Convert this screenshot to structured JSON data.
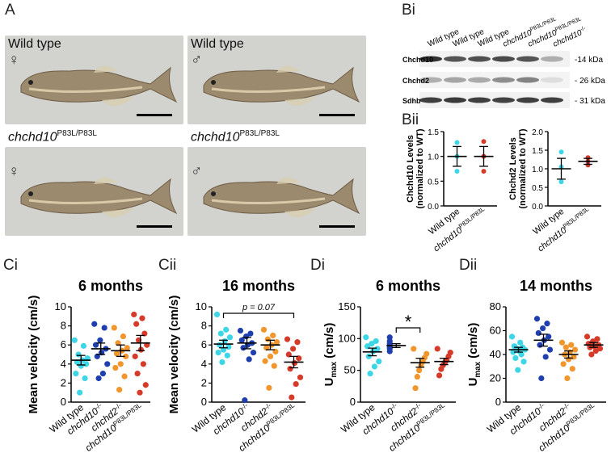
{
  "panel_labels": {
    "A": "A",
    "Bi": "Bi",
    "Bii": "Bii",
    "Ci": "Ci",
    "Cii": "Cii",
    "Di": "Di",
    "Dii": "Dii"
  },
  "panel_a": {
    "photos": [
      {
        "genotype": "Wild type",
        "sup": "",
        "sex": "♀"
      },
      {
        "genotype": "Wild type",
        "sup": "",
        "sex": "♂"
      },
      {
        "genotype": "chchd10",
        "sup": "P83L/P83L",
        "sex": "♀"
      },
      {
        "genotype": "chchd10",
        "sup": "P83L/P83L",
        "sex": "♂"
      }
    ]
  },
  "panel_bi": {
    "lanes": [
      {
        "label": "Wild type",
        "sup": ""
      },
      {
        "label": "Wild type",
        "sup": ""
      },
      {
        "label": "Wild type",
        "sup": ""
      },
      {
        "label": "chchd10",
        "sup": "P83L/P83L"
      },
      {
        "label": "chchd10",
        "sup": "P83L/P83L"
      },
      {
        "label": "chchd10",
        "sup": "-/-"
      }
    ],
    "bands": [
      {
        "protein": "Chchd10",
        "mw": "-14 kDa"
      },
      {
        "protein": "Chchd2",
        "mw": "- 26 kDa"
      },
      {
        "protein": "Sdhb",
        "mw": "- 31 kDa"
      }
    ]
  },
  "xlabels": {
    "wt": "Wild type",
    "chchd10_ko": "chchd10",
    "chchd10_ko_sup": "-/-",
    "chchd2_ko": "chchd2",
    "chchd2_ko_sup": "-/-",
    "p83l": "chchd10",
    "p83l_sup": "P83L/P83L"
  },
  "colors": {
    "wt": "#3dd6e6",
    "chchd10_ko": "#1f3fae",
    "chchd2_ko": "#f0962c",
    "p83l": "#d63b2a"
  },
  "chart_data": [
    {
      "id": "Bii-left",
      "type": "scatter",
      "ylabel": "Chchd10 Levels\n(normalized to WT)",
      "ylim": [
        0,
        1.5
      ],
      "yticks": [
        "0.0",
        "0.5",
        "1.0",
        "1.5"
      ],
      "categories": [
        "Wild type",
        "chchd10 P83L/P83L"
      ],
      "series": [
        {
          "group": "wt",
          "points": [
            1.28,
            1.0,
            0.7
          ],
          "mean": 1.0,
          "sem": 0.2
        },
        {
          "group": "p83l",
          "points": [
            1.3,
            1.0,
            0.7
          ],
          "mean": 1.0,
          "sem": 0.2
        }
      ]
    },
    {
      "id": "Bii-right",
      "type": "scatter",
      "ylabel": "Chchd2 Levels\n(normalized to WT)",
      "ylim": [
        0,
        2.0
      ],
      "yticks": [
        "0.0",
        "0.5",
        "1.0",
        "1.5",
        "2.0"
      ],
      "categories": [
        "Wild type",
        "chchd10 P83L/P83L"
      ],
      "series": [
        {
          "group": "wt",
          "points": [
            1.45,
            1.05,
            0.65
          ],
          "mean": 1.0,
          "sem": 0.28
        },
        {
          "group": "p83l",
          "points": [
            1.3,
            1.2,
            1.1
          ],
          "mean": 1.2,
          "sem": 0.08
        }
      ]
    },
    {
      "id": "Ci",
      "type": "scatter",
      "title": "6 months",
      "ylabel": "Mean velocity (cm/s)",
      "ylim": [
        0,
        10
      ],
      "yticks": [
        "0",
        "2",
        "4",
        "6",
        "8",
        "10"
      ],
      "categories": [
        "Wild type",
        "chchd10 -/-",
        "chchd2 -/-",
        "chchd10 P83L/P83L"
      ],
      "series": [
        {
          "group": "wt",
          "points": [
            6.5,
            5.9,
            5.0,
            4.6,
            4.4,
            4.2,
            4.0,
            3.8,
            3.0,
            2.5,
            1.0
          ],
          "mean": 4.4,
          "sem": 0.5
        },
        {
          "group": "chchd10_ko",
          "points": [
            8.2,
            7.8,
            6.5,
            6.0,
            5.6,
            5.2,
            4.8,
            4.0,
            3.0,
            2.5
          ],
          "mean": 5.6,
          "sem": 0.6
        },
        {
          "group": "chchd2_ko",
          "points": [
            7.8,
            6.9,
            6.2,
            5.7,
            5.4,
            5.1,
            4.8,
            4.0,
            3.6,
            2.7,
            1.3
          ],
          "mean": 5.4,
          "sem": 0.6
        },
        {
          "group": "p83l",
          "points": [
            9.2,
            8.8,
            8.2,
            7.2,
            6.5,
            6.0,
            5.5,
            4.8,
            4.0,
            3.0,
            1.8,
            1.0
          ],
          "mean": 6.2,
          "sem": 0.8
        }
      ]
    },
    {
      "id": "Cii",
      "type": "scatter",
      "title": "16 months",
      "ylabel": "Mean velocity (cm/s)",
      "ylim": [
        0,
        10
      ],
      "yticks": [
        "0",
        "2",
        "4",
        "6",
        "8",
        "10"
      ],
      "categories": [
        "Wild type",
        "chchd10 -/-",
        "chchd2 -/-",
        "chchd10 P83L/P83L"
      ],
      "annotation": "p = 0.07",
      "series": [
        {
          "group": "wt",
          "points": [
            9.2,
            7.6,
            7.2,
            6.8,
            6.4,
            6.0,
            5.8,
            5.5,
            5.2,
            4.9,
            4.2
          ],
          "mean": 6.1,
          "sem": 0.4
        },
        {
          "group": "chchd10_ko",
          "points": [
            7.5,
            7.2,
            6.9,
            6.5,
            6.2,
            6.0,
            5.7,
            5.2,
            4.5,
            0.2
          ],
          "mean": 6.2,
          "sem": 0.6
        },
        {
          "group": "chchd2_ko",
          "points": [
            7.6,
            7.0,
            6.6,
            6.3,
            6.0,
            5.7,
            5.3,
            4.8,
            4.3,
            3.8,
            1.5
          ],
          "mean": 6.0,
          "sem": 0.5
        },
        {
          "group": "p83l",
          "points": [
            6.6,
            6.3,
            5.6,
            5.0,
            4.6,
            4.1,
            3.5,
            2.6,
            1.9,
            0.5
          ],
          "mean": 4.2,
          "sem": 0.6
        }
      ]
    },
    {
      "id": "Di",
      "type": "scatter",
      "title": "6 months",
      "ylabel": "U",
      "ylabel_sub": "max",
      "ylabel_unit": "(cm/s)",
      "ylim": [
        0,
        150
      ],
      "yticks": [
        "0",
        "50",
        "100",
        "150"
      ],
      "categories": [
        "Wild type",
        "chchd10 -/-",
        "chchd2 -/-",
        "chchd10 P83L/P83L"
      ],
      "annotation": "*",
      "series": [
        {
          "group": "wt",
          "points": [
            102,
            96,
            92,
            88,
            84,
            80,
            72,
            64,
            56,
            45
          ],
          "mean": 79,
          "sem": 6
        },
        {
          "group": "chchd10_ko",
          "points": [
            102,
            96,
            92,
            89,
            86,
            84,
            80
          ],
          "mean": 89,
          "sem": 3
        },
        {
          "group": "chchd2_ko",
          "points": [
            84,
            76,
            70,
            64,
            58,
            50,
            40,
            22
          ],
          "mean": 62,
          "sem": 7
        },
        {
          "group": "p83l",
          "points": [
            84,
            78,
            72,
            66,
            62,
            58,
            52,
            42
          ],
          "mean": 64,
          "sem": 5
        }
      ]
    },
    {
      "id": "Dii",
      "type": "scatter",
      "title": "14 months",
      "ylabel": "U",
      "ylabel_sub": "max",
      "ylabel_unit": "(cm/s)",
      "ylim": [
        0,
        80
      ],
      "yticks": [
        "0",
        "20",
        "40",
        "60",
        "80"
      ],
      "categories": [
        "Wild type",
        "chchd10 -/-",
        "chchd2 -/-",
        "chchd10 P83L/P83L"
      ],
      "series": [
        {
          "group": "wt",
          "points": [
            55,
            50,
            47,
            46,
            45,
            44,
            43,
            42,
            40,
            37,
            34,
            27
          ],
          "mean": 44,
          "sem": 2
        },
        {
          "group": "chchd10_ko",
          "points": [
            70,
            66,
            62,
            58,
            55,
            52,
            48,
            44,
            38,
            20
          ],
          "mean": 52,
          "sem": 5
        },
        {
          "group": "chchd2_ko",
          "points": [
            50,
            48,
            46,
            44,
            42,
            40,
            38,
            36,
            32,
            28,
            20
          ],
          "mean": 40,
          "sem": 3
        },
        {
          "group": "p83l",
          "points": [
            55,
            53,
            51,
            49,
            48,
            47,
            46,
            45,
            43,
            40
          ],
          "mean": 48,
          "sem": 2
        }
      ]
    }
  ]
}
